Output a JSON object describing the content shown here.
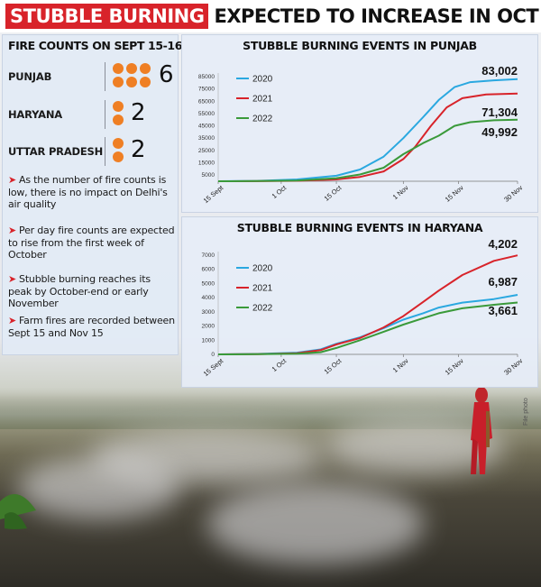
{
  "headline": {
    "highlight": "STUBBLE BURNING",
    "rest": "EXPECTED TO INCREASE IN OCT"
  },
  "fire_counts": {
    "title": "FIRE COUNTS ON SEPT 15-16",
    "states": [
      {
        "name": "PUNJAB",
        "count": "6",
        "dots": 6
      },
      {
        "name": "HARYANA",
        "count": "2",
        "dots": 2
      },
      {
        "name": "UTTAR PRADESH",
        "count": "2",
        "dots": 2
      }
    ],
    "notes": [
      "As the number of fire counts is low, there is no impact on Delhi's air quality",
      "Per day fire counts are expected to rise from the first week of October",
      "Stubble burning reaches its peak by October-end or early November",
      "Farm fires are recorded between Sept 15 and Nov 15"
    ]
  },
  "credit": "File photo",
  "colors": {
    "2020": "#2aa8e0",
    "2021": "#d8232a",
    "2022": "#3a9a3a",
    "accent": "#d8232a",
    "dots": "#ef7f24"
  },
  "chart_data": [
    {
      "type": "line",
      "title": "STUBBLE BURNING EVENTS IN PUNJAB",
      "x": [
        "15 Sept",
        "1 Oct",
        "15 Oct",
        "1 Nov",
        "15 Nov",
        "30 Nov"
      ],
      "x_pos": [
        0,
        16,
        30,
        47,
        61,
        76
      ],
      "ylim": [
        0,
        85000
      ],
      "y_ticks": [
        "5000",
        "15000",
        "25000",
        "35000",
        "45000",
        "55000",
        "65000",
        "75000",
        "85000"
      ],
      "y_tick_values": [
        5000,
        15000,
        25000,
        35000,
        45000,
        55000,
        65000,
        75000,
        85000
      ],
      "series": [
        {
          "name": "2020",
          "final_label": "83,002",
          "points": [
            [
              0,
              0
            ],
            [
              10,
              300
            ],
            [
              20,
              1500
            ],
            [
              30,
              4500
            ],
            [
              36,
              9500
            ],
            [
              42,
              20000
            ],
            [
              47,
              35000
            ],
            [
              52,
              52000
            ],
            [
              56,
              66000
            ],
            [
              60,
              76500
            ],
            [
              64,
              80500
            ],
            [
              70,
              82000
            ],
            [
              76,
              83002
            ]
          ]
        },
        {
          "name": "2021",
          "final_label": "71,304",
          "points": [
            [
              0,
              0
            ],
            [
              10,
              100
            ],
            [
              20,
              400
            ],
            [
              30,
              1500
            ],
            [
              36,
              3500
            ],
            [
              42,
              8000
            ],
            [
              47,
              18000
            ],
            [
              50,
              28000
            ],
            [
              54,
              45000
            ],
            [
              58,
              60000
            ],
            [
              62,
              67500
            ],
            [
              68,
              70500
            ],
            [
              76,
              71304
            ]
          ]
        },
        {
          "name": "2022",
          "final_label": "49,992",
          "points": [
            [
              0,
              0
            ],
            [
              10,
              150
            ],
            [
              20,
              600
            ],
            [
              30,
              2500
            ],
            [
              36,
              5500
            ],
            [
              42,
              11000
            ],
            [
              47,
              22000
            ],
            [
              52,
              31000
            ],
            [
              56,
              37000
            ],
            [
              60,
              45000
            ],
            [
              64,
              48000
            ],
            [
              70,
              49500
            ],
            [
              76,
              49992
            ]
          ]
        }
      ]
    },
    {
      "type": "line",
      "title": "STUBBLE BURNING EVENTS IN HARYANA",
      "x": [
        "15 Sept",
        "1 Oct",
        "15 Oct",
        "1 Nov",
        "15 Nov",
        "30 Nov"
      ],
      "x_pos": [
        0,
        16,
        30,
        47,
        61,
        76
      ],
      "ylim": [
        0,
        7000
      ],
      "y_ticks": [
        "0",
        "1000",
        "2000",
        "3000",
        "4000",
        "5000",
        "6000",
        "7000"
      ],
      "y_tick_values": [
        0,
        1000,
        2000,
        3000,
        4000,
        5000,
        6000,
        7000
      ],
      "series": [
        {
          "name": "2020",
          "final_label": "4,202",
          "points": [
            [
              0,
              0
            ],
            [
              10,
              30
            ],
            [
              20,
              120
            ],
            [
              26,
              350
            ],
            [
              30,
              750
            ],
            [
              36,
              1200
            ],
            [
              42,
              1850
            ],
            [
              47,
              2450
            ],
            [
              52,
              2900
            ],
            [
              56,
              3300
            ],
            [
              62,
              3650
            ],
            [
              70,
              3900
            ],
            [
              76,
              4202
            ]
          ]
        },
        {
          "name": "2021",
          "final_label": "6,987",
          "points": [
            [
              0,
              0
            ],
            [
              10,
              20
            ],
            [
              20,
              80
            ],
            [
              26,
              300
            ],
            [
              30,
              700
            ],
            [
              36,
              1150
            ],
            [
              42,
              1900
            ],
            [
              47,
              2700
            ],
            [
              52,
              3700
            ],
            [
              56,
              4500
            ],
            [
              62,
              5600
            ],
            [
              70,
              6600
            ],
            [
              76,
              6987
            ]
          ]
        },
        {
          "name": "2022",
          "final_label": "3,661",
          "points": [
            [
              0,
              0
            ],
            [
              10,
              10
            ],
            [
              20,
              50
            ],
            [
              26,
              150
            ],
            [
              30,
              450
            ],
            [
              36,
              1000
            ],
            [
              42,
              1600
            ],
            [
              47,
              2100
            ],
            [
              52,
              2550
            ],
            [
              56,
              2900
            ],
            [
              62,
              3250
            ],
            [
              70,
              3500
            ],
            [
              76,
              3661
            ]
          ]
        }
      ]
    }
  ]
}
